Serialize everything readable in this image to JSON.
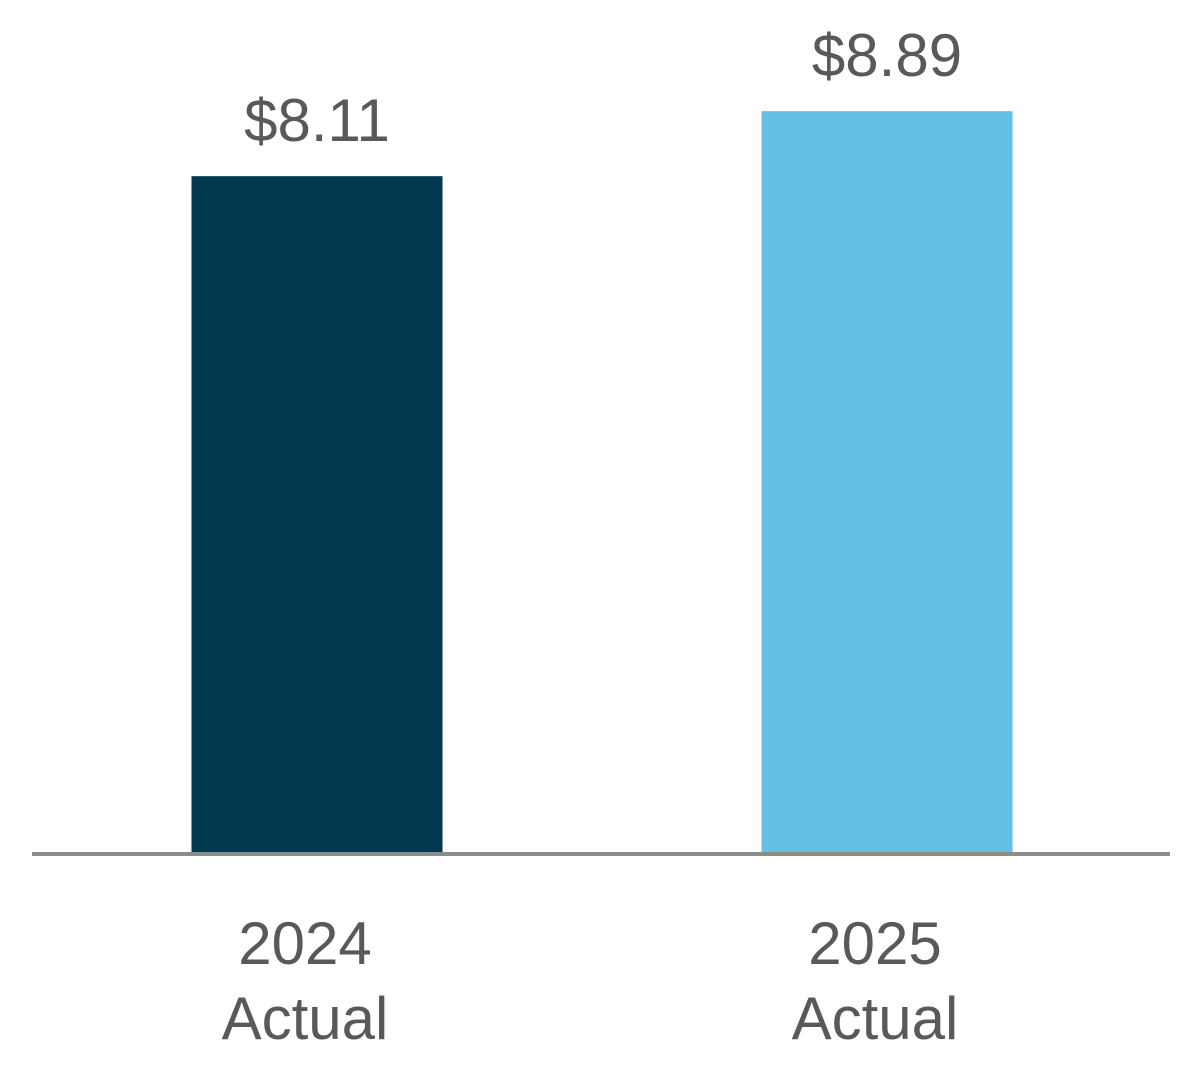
{
  "chart_data": {
    "type": "bar",
    "categories": [
      [
        "2024",
        "Actual"
      ],
      [
        "2025",
        "Actual"
      ]
    ],
    "values": [
      8.11,
      8.89
    ],
    "value_labels": [
      "$8.11",
      "$8.89"
    ],
    "colors": [
      "#023750",
      "#62C1E4"
    ],
    "axis_color": "#8C8C8C",
    "text_color": "#595959",
    "ylim": [
      0,
      9.84
    ],
    "grid": false,
    "legend": "none"
  }
}
